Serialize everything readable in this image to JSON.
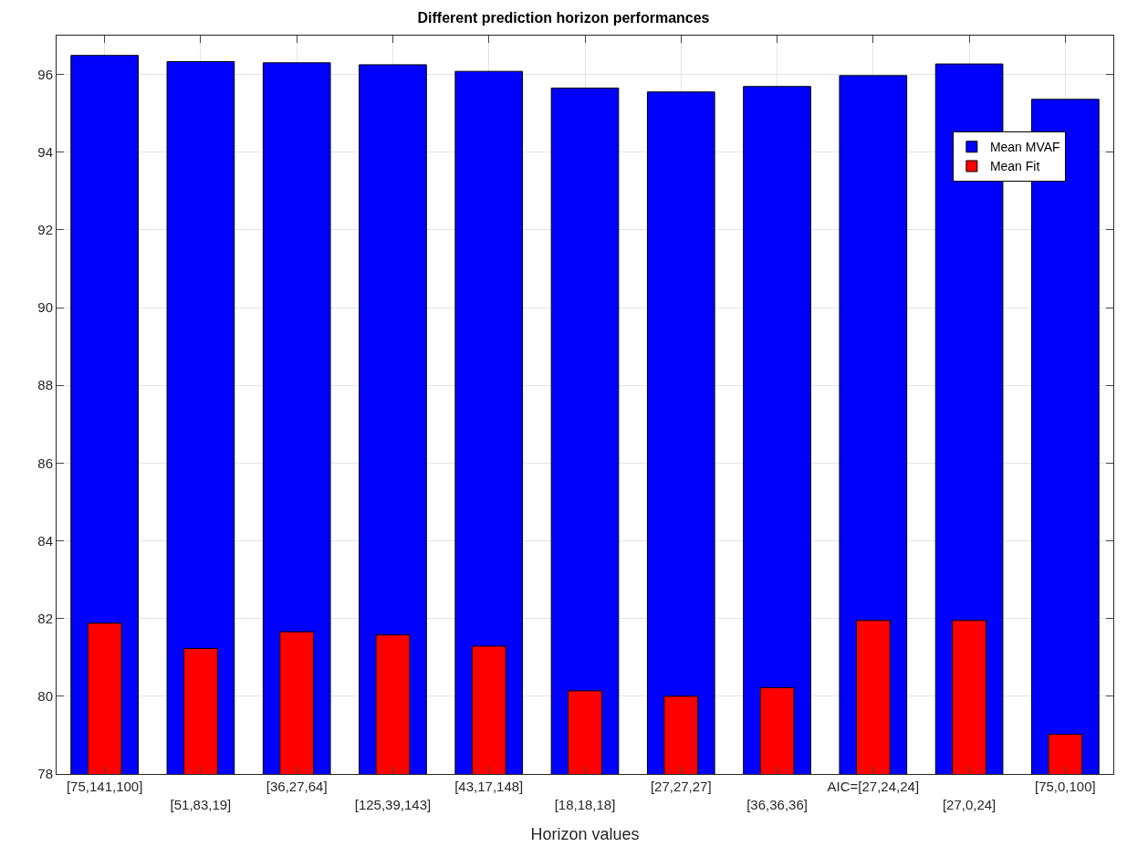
{
  "chart_data": {
    "type": "bar",
    "title": "Different prediction horizon performances",
    "xlabel": "Horizon values",
    "categories": [
      "[75,141,100]",
      "[51,83,19]",
      "[36,27,64]",
      "[125,39,143]",
      "[43,17,148]",
      "[18,18,18]",
      "[27,27,27]",
      "[36,36,36]",
      "AIC=[27,24,24]",
      "[27,0,24]",
      "[75,0,100]"
    ],
    "series": [
      {
        "name": "Mean MVAF",
        "color": "#0000ff",
        "values": [
          96.49,
          96.33,
          96.3,
          96.25,
          96.08,
          95.65,
          95.55,
          95.69,
          95.97,
          96.27,
          95.36
        ]
      },
      {
        "name": "Mean Fit",
        "color": "#ff0000",
        "values": [
          81.88,
          81.23,
          81.66,
          81.58,
          81.29,
          80.14,
          80.0,
          80.22,
          81.95,
          81.95,
          79.02
        ]
      }
    ],
    "ylim": [
      78,
      97
    ],
    "yticks": [
      78,
      80,
      82,
      84,
      86,
      88,
      90,
      92,
      94,
      96
    ],
    "grid": true,
    "legend": "top right"
  }
}
